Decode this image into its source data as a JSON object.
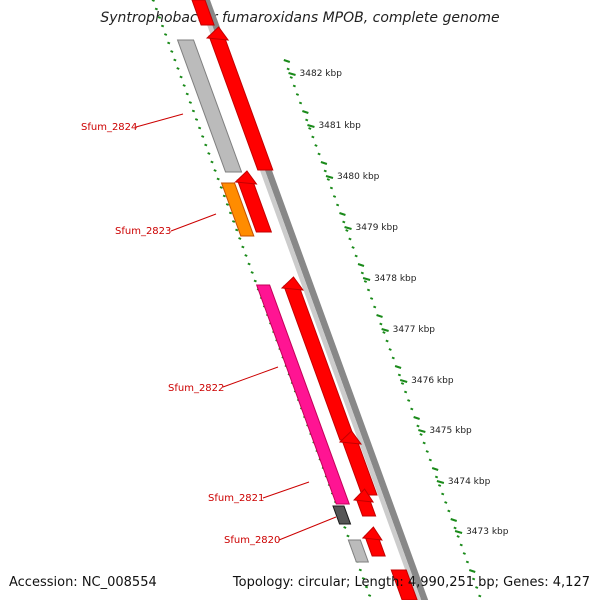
{
  "title": "Syntrophobacter fumaroxidans MPOB, complete genome",
  "footer": {
    "accession": "Accession: NC_008554",
    "stats": "Topology: circular; Length: 4,990,251 bp; Genes: 4,127"
  },
  "colors": {
    "cds_red": "#ff0000",
    "gray_feature": "#bbbbbb",
    "orange_feature": "#ff8c00",
    "pink_feature": "#ff1493",
    "dark_feature": "#555555",
    "backbone": "#888888",
    "tick_green": "#1a8a1a",
    "label_red": "#cc0000"
  },
  "scale_labels": [
    "3482 kbp",
    "3481 kbp",
    "3480 kbp",
    "3479 kbp",
    "3478 kbp",
    "3477 kbp",
    "3476 kbp",
    "3475 kbp",
    "3474 kbp",
    "3473 kbp"
  ],
  "gene_labels": [
    "Sfum_2824",
    "Sfum_2823",
    "Sfum_2822",
    "Sfum_2821",
    "Sfum_2820"
  ]
}
